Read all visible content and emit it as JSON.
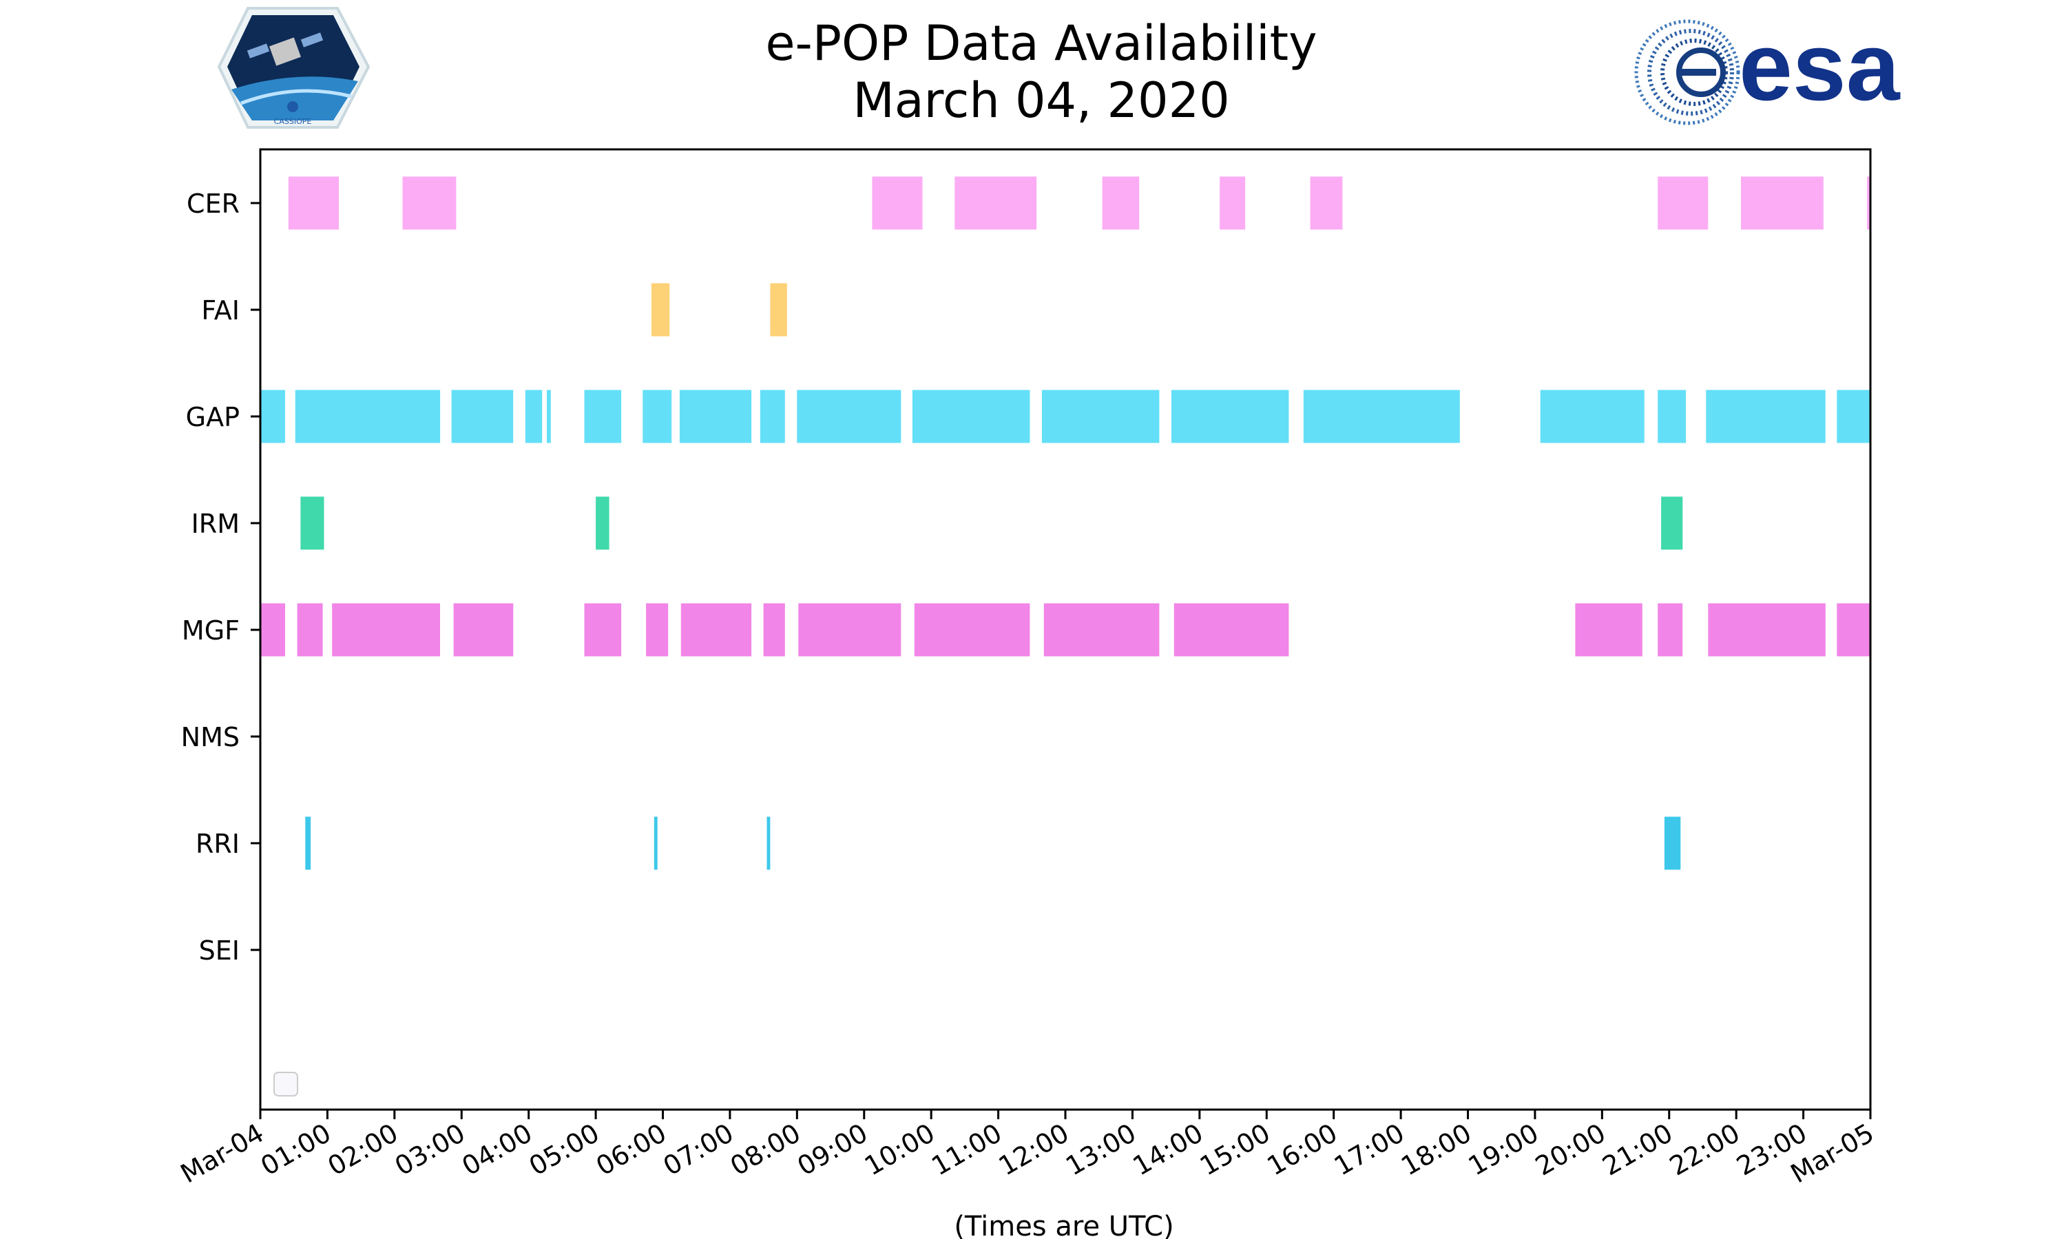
{
  "chart_data": {
    "type": "timeline",
    "title": [
      "e-POP Data Availability",
      "March 04, 2020"
    ],
    "xlabel": "(Times are UTC)",
    "x_range_hours": [
      0,
      24
    ],
    "x_ticks": [
      {
        "hour": 0,
        "label": "Mar-04"
      },
      {
        "hour": 1,
        "label": "01:00"
      },
      {
        "hour": 2,
        "label": "02:00"
      },
      {
        "hour": 3,
        "label": "03:00"
      },
      {
        "hour": 4,
        "label": "04:00"
      },
      {
        "hour": 5,
        "label": "05:00"
      },
      {
        "hour": 6,
        "label": "06:00"
      },
      {
        "hour": 7,
        "label": "07:00"
      },
      {
        "hour": 8,
        "label": "08:00"
      },
      {
        "hour": 9,
        "label": "09:00"
      },
      {
        "hour": 10,
        "label": "10:00"
      },
      {
        "hour": 11,
        "label": "11:00"
      },
      {
        "hour": 12,
        "label": "12:00"
      },
      {
        "hour": 13,
        "label": "13:00"
      },
      {
        "hour": 14,
        "label": "14:00"
      },
      {
        "hour": 15,
        "label": "15:00"
      },
      {
        "hour": 16,
        "label": "16:00"
      },
      {
        "hour": 17,
        "label": "17:00"
      },
      {
        "hour": 18,
        "label": "18:00"
      },
      {
        "hour": 19,
        "label": "19:00"
      },
      {
        "hour": 20,
        "label": "20:00"
      },
      {
        "hour": 21,
        "label": "21:00"
      },
      {
        "hour": 22,
        "label": "22:00"
      },
      {
        "hour": 23,
        "label": "23:00"
      },
      {
        "hour": 24,
        "label": "Mar-05"
      }
    ],
    "instruments": [
      {
        "name": "CER",
        "color": "#fcacf4",
        "intervals": [
          [
            0.42,
            1.17
          ],
          [
            2.12,
            2.92
          ],
          [
            9.12,
            9.87
          ],
          [
            10.35,
            11.57
          ],
          [
            12.55,
            13.1
          ],
          [
            14.3,
            14.68
          ],
          [
            15.65,
            16.13
          ],
          [
            20.83,
            21.58
          ],
          [
            22.07,
            23.3
          ],
          [
            23.95,
            24.0
          ]
        ]
      },
      {
        "name": "FAI",
        "color": "#fdd176",
        "intervals": [
          [
            5.83,
            6.1
          ],
          [
            7.6,
            7.85
          ]
        ]
      },
      {
        "name": "GAP",
        "color": "#64dff8",
        "intervals": [
          [
            0.0,
            0.37
          ],
          [
            0.52,
            2.68
          ],
          [
            2.85,
            3.77
          ],
          [
            3.95,
            4.2
          ],
          [
            4.27,
            4.33
          ],
          [
            4.83,
            5.38
          ],
          [
            5.7,
            6.13
          ],
          [
            6.25,
            7.32
          ],
          [
            7.45,
            7.82
          ],
          [
            8.0,
            9.55
          ],
          [
            9.72,
            11.47
          ],
          [
            11.65,
            13.4
          ],
          [
            13.58,
            15.33
          ],
          [
            15.55,
            17.88
          ],
          [
            19.08,
            20.63
          ],
          [
            20.83,
            21.25
          ],
          [
            21.55,
            23.33
          ],
          [
            23.5,
            24.0
          ]
        ]
      },
      {
        "name": "IRM",
        "color": "#40d9ab",
        "intervals": [
          [
            0.6,
            0.95
          ],
          [
            5.0,
            5.2
          ],
          [
            20.88,
            21.2
          ]
        ]
      },
      {
        "name": "MGF",
        "color": "#f285e8",
        "intervals": [
          [
            0.0,
            0.37
          ],
          [
            0.55,
            0.93
          ],
          [
            1.07,
            2.68
          ],
          [
            2.88,
            3.77
          ],
          [
            4.83,
            5.38
          ],
          [
            5.75,
            6.08
          ],
          [
            6.27,
            7.32
          ],
          [
            7.5,
            7.82
          ],
          [
            8.02,
            9.55
          ],
          [
            9.75,
            11.47
          ],
          [
            11.68,
            13.4
          ],
          [
            13.62,
            15.33
          ],
          [
            19.6,
            20.6
          ],
          [
            20.83,
            21.2
          ],
          [
            21.58,
            23.33
          ],
          [
            23.5,
            24.0
          ]
        ]
      },
      {
        "name": "NMS",
        "color": "#f285e8",
        "intervals": []
      },
      {
        "name": "RRI",
        "color": "#3dc8eb",
        "intervals": [
          [
            0.67,
            0.75
          ],
          [
            5.87,
            5.92
          ],
          [
            7.55,
            7.6
          ],
          [
            20.93,
            21.17
          ]
        ]
      },
      {
        "name": "SEI",
        "color": "#f285e8",
        "intervals": []
      }
    ],
    "grid": false,
    "legend": "lower-left (empty)"
  },
  "logos": {
    "left": "CASSIOPE",
    "right": "esa"
  }
}
